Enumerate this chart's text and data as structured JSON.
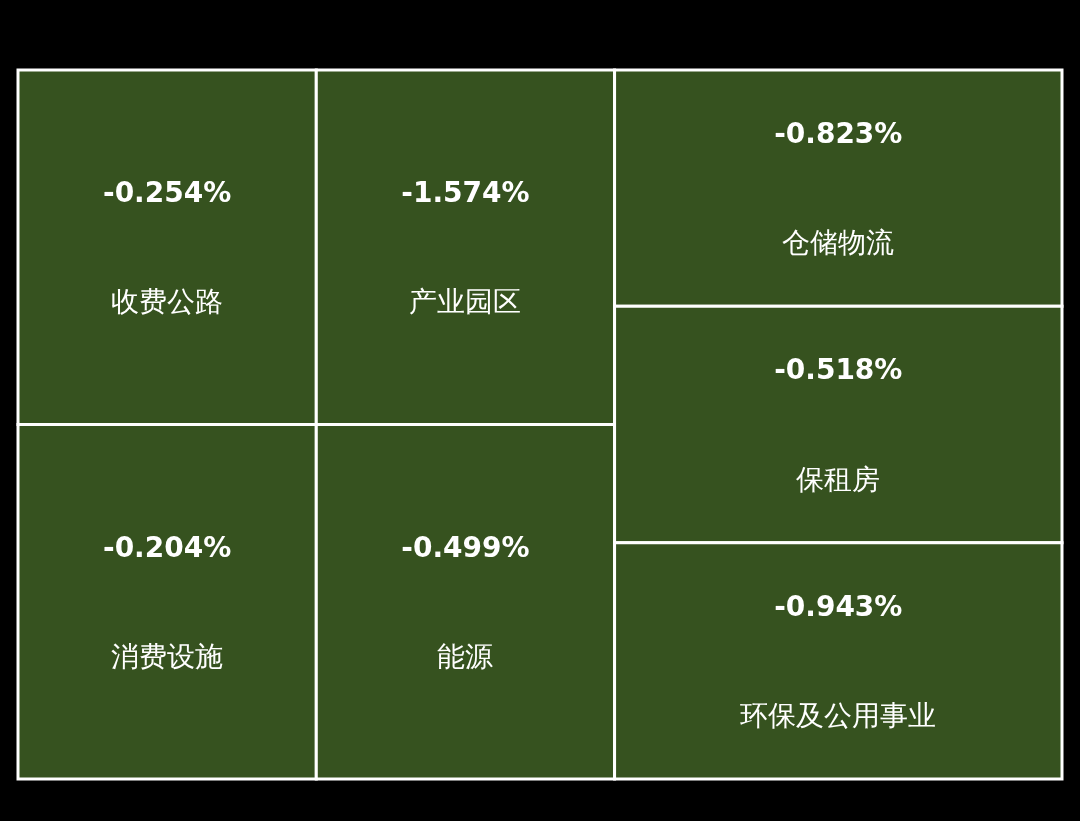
{
  "chart_data": {
    "type": "other",
    "categories": [
      "收费公路",
      "消费设施",
      "产业园区",
      "能源",
      "仓储物流",
      "保租房",
      "环保及公用事业"
    ],
    "values": [
      -0.254,
      -0.204,
      -1.574,
      -0.499,
      -0.823,
      -0.518,
      -0.943
    ],
    "value_labels": [
      "-0.254%",
      "-0.204%",
      "-1.574%",
      "-0.499%",
      "-0.823%",
      "-0.518%",
      "-0.943%"
    ],
    "colors": [
      "#36521f",
      "#36521f",
      "#36521f",
      "#36521f",
      "#36521f",
      "#36521f",
      "#36521f"
    ]
  }
}
